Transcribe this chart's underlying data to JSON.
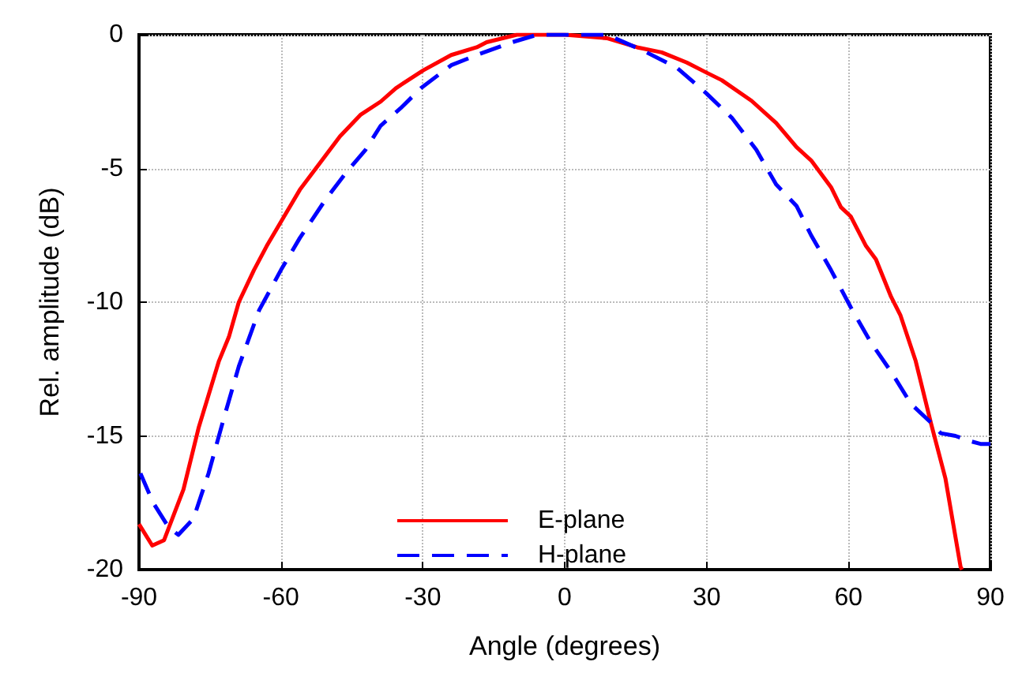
{
  "chart_data": {
    "type": "line",
    "xlabel": "Angle (degrees)",
    "ylabel": "Rel. amplitude (dB)",
    "xlim": [
      -90,
      90
    ],
    "xticks": [
      -90,
      -60,
      -30,
      0,
      30,
      60,
      90
    ],
    "ylim": [
      -20,
      0
    ],
    "yticks": [
      -20,
      -15,
      -10,
      -5,
      0
    ],
    "grid": true,
    "legend": "bottom",
    "marker": "none",
    "series": [
      {
        "name": "E-plane",
        "color": "#ff0000",
        "line_style": "solid",
        "x": [
          -90,
          -87.2,
          -84.7,
          -80.6,
          -77.4,
          -73.1,
          -71,
          -68.9,
          -65.7,
          -63,
          -60,
          -56,
          -50.7,
          -47.5,
          -43.2,
          -38.9,
          -35.7,
          -29.9,
          -24,
          -18.6,
          -16.5,
          -10.1,
          0,
          8.9,
          15.3,
          20.5,
          25.8,
          30,
          33.2,
          39.5,
          44.7,
          49,
          52.1,
          56.3,
          58.4,
          60.5,
          63.7,
          65.8,
          69,
          71,
          74.2,
          77.4,
          80.5,
          83.7,
          84
        ],
        "values": [
          -18.3,
          -19.1,
          -18.9,
          -17,
          -14.7,
          -12.2,
          -11.3,
          -10,
          -8.8,
          -7.9,
          -7,
          -5.8,
          -4.55,
          -3.8,
          -3,
          -2.5,
          -2,
          -1.33,
          -0.76,
          -0.47,
          -0.28,
          0,
          0,
          -0.13,
          -0.47,
          -0.66,
          -1.04,
          -1.42,
          -1.7,
          -2.47,
          -3.3,
          -4.2,
          -4.7,
          -5.7,
          -6.45,
          -6.8,
          -7.9,
          -8.4,
          -9.8,
          -10.5,
          -12.2,
          -14.5,
          -16.6,
          -19.9,
          -20
        ]
      },
      {
        "name": "H-plane",
        "color": "#0000ff",
        "line_style": "dashed",
        "x": [
          -89.7,
          -87,
          -83.8,
          -81.7,
          -78.5,
          -75.3,
          -72,
          -68.9,
          -64.6,
          -60,
          -56,
          -50.7,
          -46.4,
          -42.1,
          -38.9,
          -34.7,
          -30.4,
          -24,
          -18.6,
          -11.1,
          -5.8,
          0,
          8.9,
          16.3,
          23.7,
          30,
          35.3,
          40.5,
          44.7,
          49,
          52.1,
          56.3,
          60.5,
          64.7,
          69,
          73.2,
          77.4,
          79.5,
          82.6,
          85.8,
          87.9,
          90
        ],
        "values": [
          -16.4,
          -17.5,
          -18.4,
          -18.7,
          -18.1,
          -16.4,
          -14.3,
          -12.4,
          -10.3,
          -8.8,
          -7.6,
          -6.2,
          -5.2,
          -4.3,
          -3.4,
          -2.75,
          -2,
          -1.14,
          -0.76,
          -0.28,
          0,
          0,
          0,
          -0.57,
          -1.23,
          -2.2,
          -3.1,
          -4.3,
          -5.6,
          -6.4,
          -7.5,
          -8.8,
          -10.2,
          -11.5,
          -12.6,
          -13.8,
          -14.5,
          -14.9,
          -15,
          -15.2,
          -15.3,
          -15.3
        ]
      }
    ]
  }
}
